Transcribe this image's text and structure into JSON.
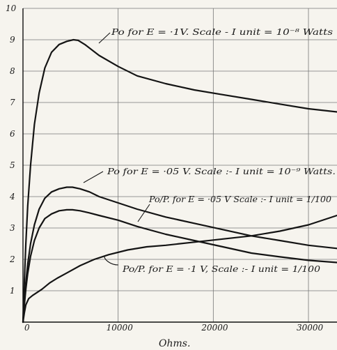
{
  "chart_data": {
    "type": "line",
    "xlabel": "Ohms.",
    "ylabel": "",
    "xlim": [
      0,
      33000
    ],
    "ylim": [
      0,
      10
    ],
    "x_ticks": [
      {
        "v": 0,
        "label": "0"
      },
      {
        "v": 10000,
        "label": "10000"
      },
      {
        "v": 20000,
        "label": "20000"
      },
      {
        "v": 30000,
        "label": "30000"
      }
    ],
    "y_ticks": [
      {
        "v": 1,
        "label": "1"
      },
      {
        "v": 2,
        "label": "2"
      },
      {
        "v": 3,
        "label": "3"
      },
      {
        "v": 4,
        "label": "4"
      },
      {
        "v": 5,
        "label": "5"
      },
      {
        "v": 6,
        "label": "6"
      },
      {
        "v": 7,
        "label": "7"
      },
      {
        "v": 8,
        "label": "8"
      },
      {
        "v": 9,
        "label": "9"
      },
      {
        "v": 10,
        "label": "10"
      }
    ],
    "grid": true,
    "annotations": [
      {
        "id": "a1",
        "text": "Po for E = ·1V.   Scale - I unit = 10⁻⁸ Watts"
      },
      {
        "id": "a2",
        "text": "Po for E = ·05 V.  Scale :- I unit = 10⁻⁹ Watts."
      },
      {
        "id": "a3",
        "text": "Po/P. for E = ·05 V  Scale :- I unit = 1/100"
      },
      {
        "id": "a4",
        "text": "Po/P. for E = ·1 V,  Scale :- I unit = 1/100"
      }
    ],
    "series": [
      {
        "x": [
          0,
          150,
          300,
          500,
          800,
          1200,
          1700,
          2300,
          3000,
          3800,
          4600,
          5300,
          5800,
          6500,
          8000,
          10000,
          12000,
          15000,
          18000,
          21000,
          24000,
          27000,
          30000,
          33000
        ],
        "values": [
          0,
          1.3,
          2.5,
          3.7,
          5.0,
          6.3,
          7.3,
          8.1,
          8.6,
          8.85,
          8.95,
          9.0,
          8.98,
          8.85,
          8.5,
          8.15,
          7.85,
          7.6,
          7.4,
          7.25,
          7.1,
          6.95,
          6.8,
          6.7
        ]
      },
      {
        "x": [
          0,
          150,
          300,
          500,
          800,
          1200,
          1700,
          2300,
          3000,
          3800,
          4600,
          5200,
          6000,
          7000,
          8000,
          10000,
          12000,
          15000,
          18000,
          21000,
          24000,
          27000,
          30000,
          33000
        ],
        "values": [
          0,
          0.65,
          1.25,
          1.85,
          2.5,
          3.1,
          3.6,
          3.95,
          4.15,
          4.25,
          4.3,
          4.3,
          4.25,
          4.15,
          4.0,
          3.8,
          3.6,
          3.35,
          3.15,
          2.95,
          2.75,
          2.6,
          2.45,
          2.35
        ]
      },
      {
        "x": [
          0,
          150,
          300,
          500,
          800,
          1200,
          1700,
          2300,
          3000,
          3800,
          4600,
          5200,
          6000,
          7000,
          8000,
          10000,
          12000,
          15000,
          18000,
          21000,
          24000,
          27000,
          30000,
          33000
        ],
        "values": [
          0,
          0.55,
          1.05,
          1.55,
          2.1,
          2.6,
          3.0,
          3.3,
          3.45,
          3.55,
          3.58,
          3.58,
          3.55,
          3.48,
          3.4,
          3.25,
          3.05,
          2.8,
          2.6,
          2.4,
          2.2,
          2.08,
          1.97,
          1.9
        ]
      },
      {
        "x": [
          0,
          150,
          300,
          600,
          1000,
          1500,
          2000,
          2800,
          3600,
          4500,
          6000,
          7500,
          9000,
          11000,
          13000,
          15000,
          18000,
          21000,
          24000,
          27000,
          30000,
          33000
        ],
        "values": [
          0,
          0.3,
          0.55,
          0.75,
          0.85,
          0.95,
          1.05,
          1.25,
          1.4,
          1.55,
          1.8,
          2.0,
          2.15,
          2.3,
          2.4,
          2.45,
          2.55,
          2.65,
          2.75,
          2.9,
          3.1,
          3.4
        ]
      }
    ]
  }
}
